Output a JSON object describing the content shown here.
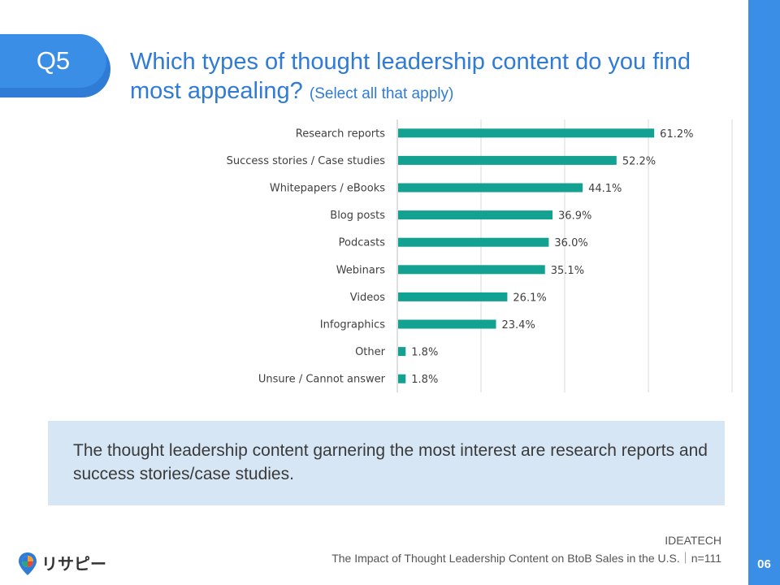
{
  "question": {
    "number": "Q5",
    "title": "Which types of thought leadership content do you find most appealing?",
    "subtitle": "(Select all that apply)"
  },
  "chart_data": {
    "type": "bar",
    "orientation": "horizontal",
    "categories": [
      "Research reports",
      "Success stories / Case studies",
      "Whitepapers / eBooks",
      "Blog posts",
      "Podcasts",
      "Webinars",
      "Videos",
      "Infographics",
      "Other",
      "Unsure / Cannot answer"
    ],
    "values": [
      61.2,
      52.2,
      44.1,
      36.9,
      36.0,
      35.1,
      26.1,
      23.4,
      1.8,
      1.8
    ],
    "value_labels": [
      "61.2%",
      "52.2%",
      "44.1%",
      "36.9%",
      "36.0%",
      "35.1%",
      "26.1%",
      "23.4%",
      "1.8%",
      "1.8%"
    ],
    "xlim": [
      0,
      80
    ],
    "grid": true,
    "bar_color": "#13a292"
  },
  "summary": "The thought leadership content garnering the most interest are research reports and success stories/case studies.",
  "source": {
    "org": "IDEATECH",
    "line": "The Impact of Thought Leadership Content on BtoB Sales in the U.S.｜n=111"
  },
  "logo": {
    "text": "リサピー"
  },
  "page_number": "06",
  "colors": {
    "accent": "#3a8ee6",
    "bar": "#13a292",
    "summary_bg": "#d6e6f5"
  }
}
